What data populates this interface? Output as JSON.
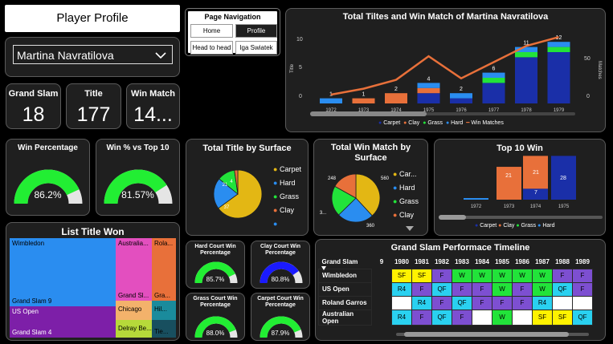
{
  "page_title": "Player Profile",
  "player_select": {
    "value": "Martina Navratilova"
  },
  "nav": {
    "title": "Page Navigation",
    "home": "Home",
    "profile": "Profile",
    "h2h": "Head to head",
    "iga": "Iga Swiatek"
  },
  "kpis": {
    "gs_label": "Grand Slam",
    "gs_value": "18",
    "title_label": "Title",
    "title_value": "177",
    "win_label": "Win Match",
    "win_value": "14..."
  },
  "gauges": {
    "win_pct": {
      "label": "Win Percentage",
      "value": "86.2%",
      "fraction": 0.862
    },
    "win_top10": {
      "label": "Win % vs Top 10",
      "value": "81.57%",
      "fraction": 0.8157
    },
    "hard": {
      "label": "Hard Court Win Percentage",
      "value": "85.7%",
      "fraction": 0.857
    },
    "clay": {
      "label": "Clay Court Win Percentage",
      "value": "80.8%",
      "fraction": 0.808
    },
    "grass": {
      "label": "Grass Court Win Percentage",
      "value": "88.0%",
      "fraction": 0.88
    },
    "carpet": {
      "label": "Carpet Court Win Percentage",
      "value": "87.9%",
      "fraction": 0.879
    }
  },
  "colors": {
    "carpet": "#1a2fa8",
    "clay": "#e8703a",
    "grass": "#22e33a",
    "hard": "#2a8df0",
    "line": "#e8703a",
    "yellow": "#e3b714",
    "gauge_green": "#22ee33",
    "gauge_blue": "#1a1aff"
  },
  "chart_data": [
    {
      "type": "bar",
      "title": "Total Tiltes and Win Match of Martina Navratilova",
      "ylabel": "Title",
      "y2label": "Matches",
      "categories": [
        "1972",
        "1973",
        "1974",
        "1975",
        "1976",
        "1977",
        "1978",
        "1979"
      ],
      "series": [
        {
          "name": "Carpet",
          "values": [
            0,
            0,
            0,
            2,
            1,
            4,
            9,
            10
          ]
        },
        {
          "name": "Clay",
          "values": [
            0,
            1,
            2,
            1,
            0,
            0,
            0,
            0
          ]
        },
        {
          "name": "Grass",
          "values": [
            0,
            0,
            0,
            0,
            0,
            1,
            1,
            1
          ]
        },
        {
          "name": "Hard",
          "values": [
            1,
            0,
            0,
            1,
            1,
            1,
            1,
            1
          ]
        }
      ],
      "totals": [
        "1",
        "1",
        "2",
        "4",
        "2",
        "6",
        "11",
        "12"
      ],
      "line": {
        "name": "Win Matches",
        "values": [
          12,
          20,
          32,
          64,
          34,
          56,
          78,
          90
        ]
      },
      "yticks": [
        "0",
        "5",
        "10"
      ],
      "y2ticks": [
        "0",
        "50"
      ],
      "legend": [
        "Carpet",
        "Clay",
        "Grass",
        "Hard",
        "Win Matches"
      ]
    },
    {
      "type": "pie",
      "title": "Total Title by Surface",
      "slices": [
        {
          "label": "Carpet",
          "value": 115
        },
        {
          "label": "Hard",
          "value": 37
        },
        {
          "label": "Grass",
          "value": 21
        },
        {
          "label": "Clay",
          "value": 4
        }
      ],
      "slice_labels": [
        "37",
        "21",
        "4"
      ],
      "legend": [
        "Carpet",
        "Hard",
        "Grass",
        "Clay",
        ""
      ]
    },
    {
      "type": "pie",
      "title": "Total Win Match by Surface",
      "slices": [
        {
          "label": "Carpet",
          "value": 560
        },
        {
          "label": "Hard",
          "value": 360
        },
        {
          "label": "Grass",
          "value": 300
        },
        {
          "label": "Clay",
          "value": 248
        }
      ],
      "slice_labels": [
        "560",
        "360",
        "3...",
        "248"
      ],
      "legend": [
        "Car...",
        "Hard",
        "Grass",
        "Clay"
      ]
    },
    {
      "type": "bar",
      "title": "Top 10 Win",
      "categories": [
        "1972",
        "1973",
        "1974",
        "1975"
      ],
      "series": [
        {
          "name": "Carpet",
          "values": [
            0,
            0,
            7,
            28
          ]
        },
        {
          "name": "Clay",
          "values": [
            0,
            21,
            21,
            0
          ]
        },
        {
          "name": "Grass",
          "values": [
            0,
            0,
            0,
            0
          ]
        },
        {
          "name": "Hard",
          "values": [
            1,
            0,
            0,
            0
          ]
        }
      ],
      "labels": {
        "1973_clay": "21",
        "1974_clay": "21",
        "1974_carpet": "7",
        "1975_carpet": "28"
      },
      "legend": [
        "Carpet",
        "Clay",
        "Grass",
        "Hard"
      ]
    }
  ],
  "treemap": {
    "title": "List Title Won",
    "cells": {
      "wimbledon": "Wimbledon",
      "gs9": "Grand Slam 9",
      "usopen": "US Open",
      "gs4": "Grand Slam 4",
      "australia": "Australia...",
      "gsl": "Grand Sl...",
      "chicago": "Chicago",
      "delray": "Delray Be...",
      "rola": "Rola...",
      "gra": "Gra...",
      "hil": "Hil...",
      "tie": "Tie..."
    }
  },
  "timeline": {
    "title": "Grand Slam Performace Timeline",
    "columns": [
      "Grand Slam",
      "9",
      "1980",
      "1981",
      "1982",
      "1983",
      "1984",
      "1985",
      "1986",
      "1987",
      "1988",
      "1989"
    ],
    "rows": [
      {
        "name": "Wimbledon",
        "cells": [
          "",
          "SF",
          "SF",
          "F",
          "W",
          "W",
          "W",
          "W",
          "W",
          "F",
          "F"
        ]
      },
      {
        "name": "US Open",
        "cells": [
          "",
          "R4",
          "F",
          "QF",
          "F",
          "F",
          "W",
          "F",
          "W",
          "QF",
          "F"
        ]
      },
      {
        "name": "Roland Garros",
        "cells": [
          "",
          "",
          "R4",
          "F",
          "QF",
          "F",
          "F",
          "F",
          "R4",
          "",
          ""
        ]
      },
      {
        "name": "Australian Open",
        "cells": [
          "",
          "R4",
          "F",
          "QF",
          "F",
          "",
          "W",
          "",
          "SF",
          "SF",
          "QF"
        ]
      }
    ]
  }
}
